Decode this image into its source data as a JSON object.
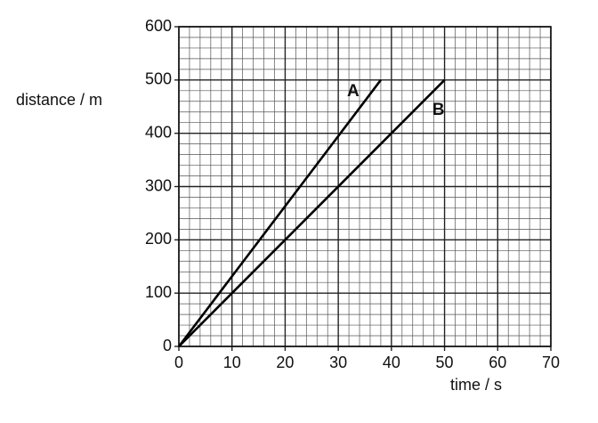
{
  "chart_data": {
    "type": "line",
    "x_label": "time / s",
    "y_label": "distance / m",
    "series": [
      {
        "name": "A",
        "color": "#000000",
        "x": [
          0,
          38
        ],
        "values": [
          0,
          500
        ]
      },
      {
        "name": "B",
        "color": "#000000",
        "x": [
          0,
          50
        ],
        "values": [
          0,
          500
        ]
      }
    ],
    "xlim": [
      0,
      70
    ],
    "xticks": [
      0,
      10,
      20,
      30,
      40,
      50,
      60,
      70
    ],
    "ylim": [
      0,
      600
    ],
    "yticks": [
      0,
      100,
      200,
      300,
      400,
      500,
      600
    ],
    "grid": true,
    "minor_grid_divisions": 5
  }
}
